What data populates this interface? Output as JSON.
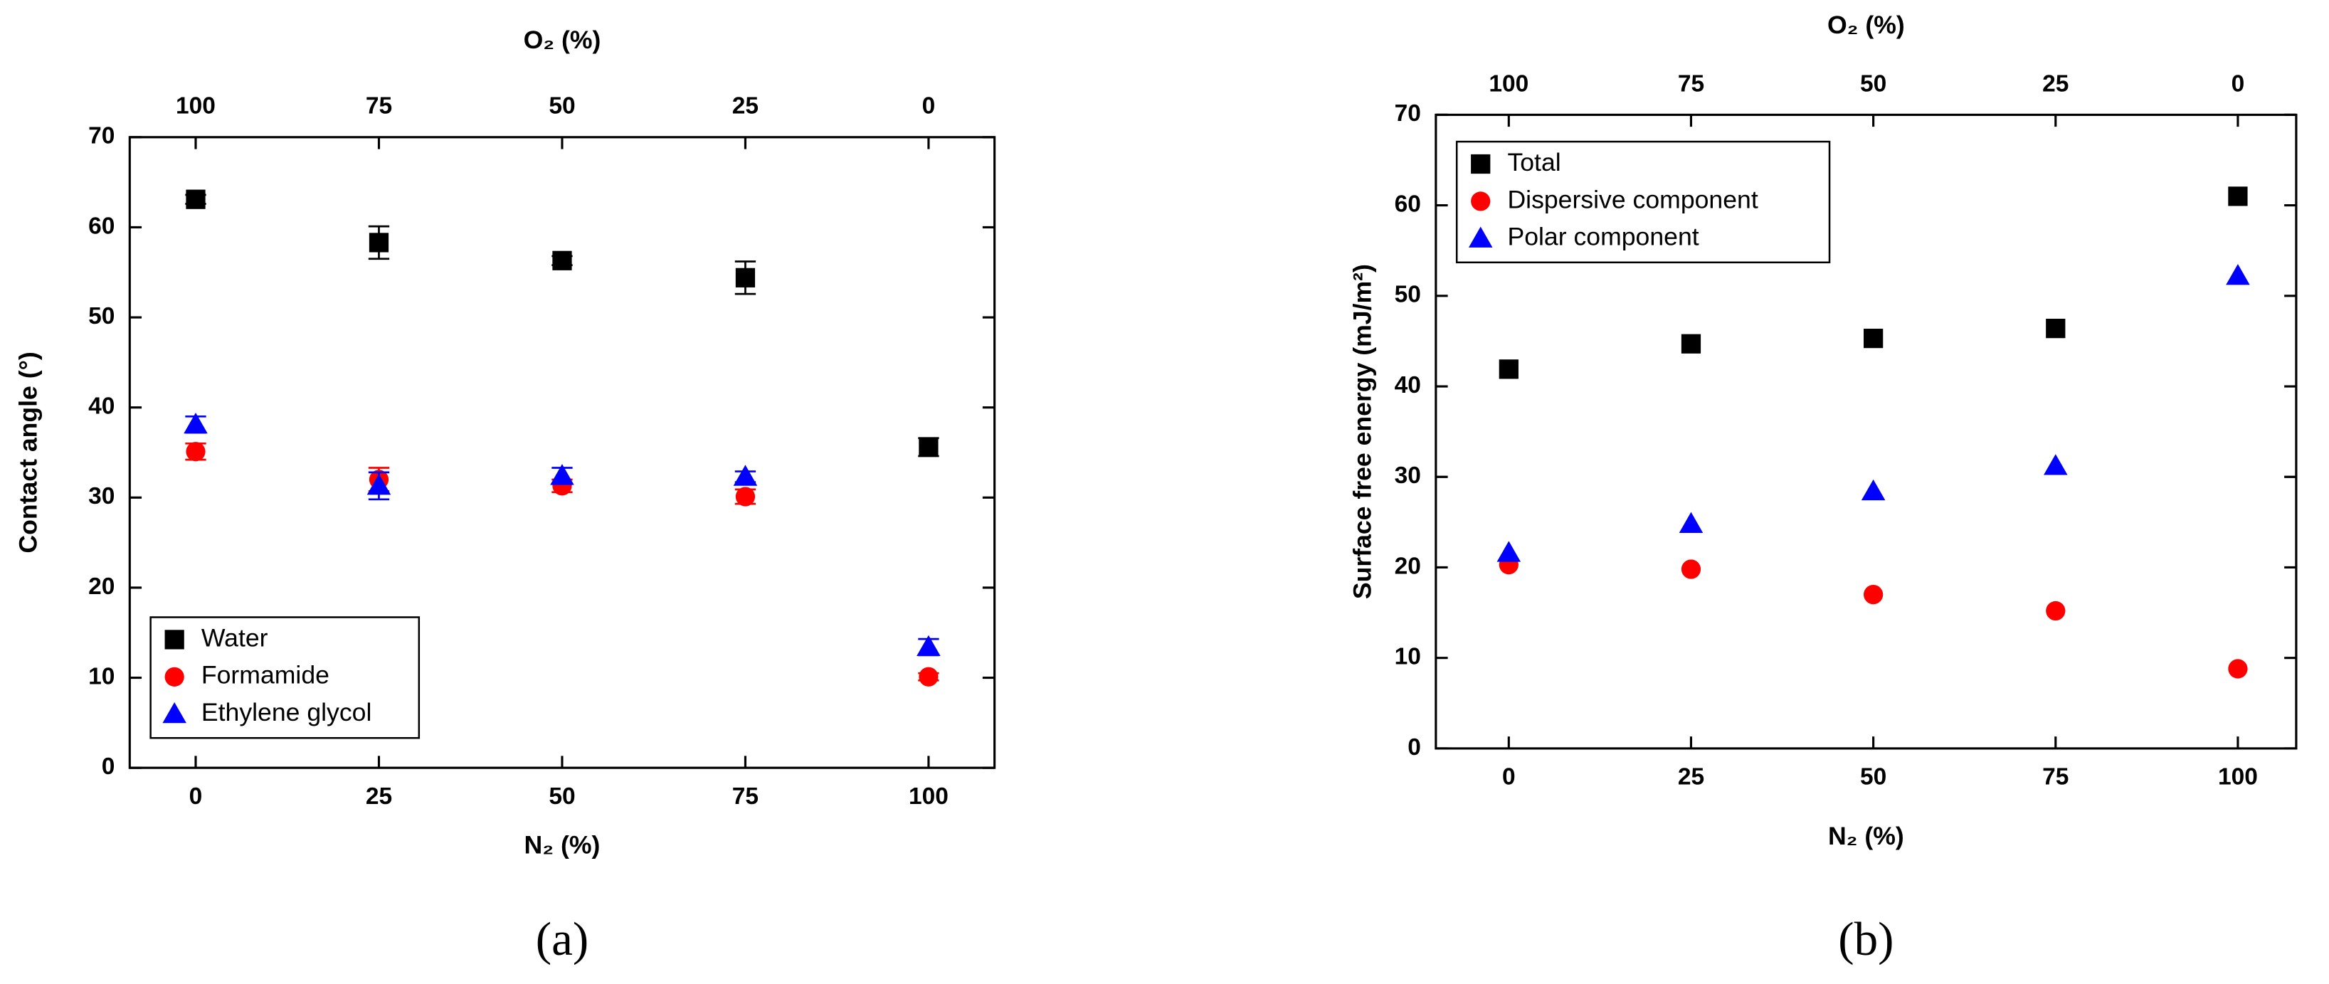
{
  "chart_data": [
    {
      "type": "scatter",
      "panel_label": "(a)",
      "xlabel": "N₂ (%)",
      "x2label": "O₂ (%)",
      "ylabel": "Contact angle (°)",
      "x": [
        0,
        25,
        50,
        75,
        100
      ],
      "xlim": [
        -9,
        109
      ],
      "xticks": [
        0,
        25,
        50,
        75,
        100
      ],
      "x2lim": [
        109,
        -9
      ],
      "x2ticks": [
        100,
        75,
        50,
        25,
        0
      ],
      "ylim": [
        0,
        70
      ],
      "yticks": [
        0,
        10,
        20,
        30,
        40,
        50,
        60,
        70
      ],
      "legend": "lower left",
      "series": [
        {
          "name": "Water",
          "color": "#000000",
          "marker": "square",
          "values": [
            63.1,
            58.3,
            56.3,
            54.4,
            35.6
          ],
          "errors": [
            0.5,
            1.8,
            0.5,
            1.8,
            1.0
          ]
        },
        {
          "name": "Formamide",
          "color": "#ff0000",
          "marker": "circle",
          "values": [
            35.1,
            32.0,
            31.3,
            30.1,
            10.1
          ],
          "errors": [
            0.9,
            1.3,
            0.7,
            0.8,
            0.4
          ]
        },
        {
          "name": "Ethylene glycol",
          "color": "#0000ff",
          "marker": "triangle",
          "values": [
            38.1,
            31.3,
            32.4,
            32.3,
            13.4
          ],
          "errors": [
            0.9,
            1.5,
            0.9,
            0.6,
            0.9
          ]
        }
      ]
    },
    {
      "type": "scatter",
      "panel_label": "(b)",
      "xlabel": "N₂ (%)",
      "x2label": "O₂ (%)",
      "ylabel": "Surface free energy (mJ/m²)",
      "x": [
        0,
        25,
        50,
        75,
        100
      ],
      "xlim": [
        -10,
        108
      ],
      "xticks": [
        0,
        25,
        50,
        75,
        100
      ],
      "x2lim": [
        110,
        -8
      ],
      "x2ticks": [
        100,
        75,
        50,
        25,
        0
      ],
      "ylim": [
        0,
        70
      ],
      "yticks": [
        0,
        10,
        20,
        30,
        40,
        50,
        60,
        70
      ],
      "legend": "upper left",
      "series": [
        {
          "name": "Total",
          "color": "#000000",
          "marker": "square",
          "values": [
            41.9,
            44.7,
            45.3,
            46.4,
            61.0
          ]
        },
        {
          "name": "Dispersive component",
          "color": "#ff0000",
          "marker": "circle",
          "values": [
            20.3,
            19.8,
            17.0,
            15.2,
            8.8
          ]
        },
        {
          "name": "Polar component",
          "color": "#0000ff",
          "marker": "triangle",
          "values": [
            21.6,
            24.8,
            28.4,
            31.2,
            52.2
          ]
        }
      ]
    }
  ]
}
